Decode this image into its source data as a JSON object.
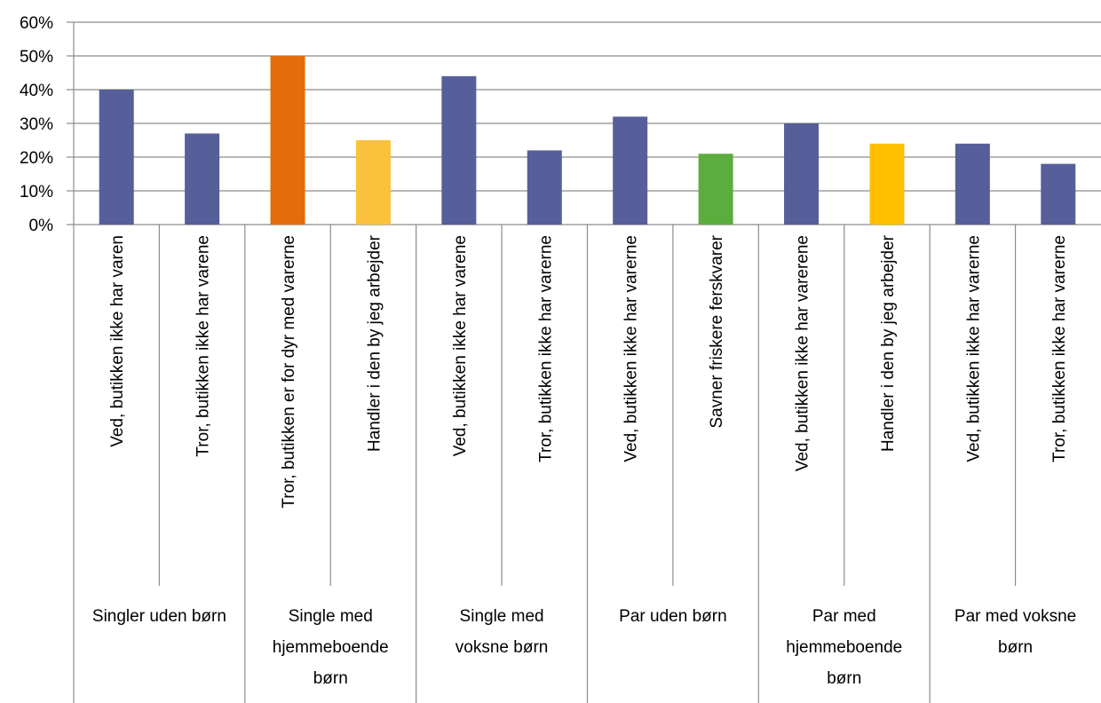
{
  "chart_data": {
    "type": "bar",
    "title": "",
    "xlabel": "",
    "ylabel": "",
    "ylim": [
      0,
      60
    ],
    "yticks": [
      "0%",
      "10%",
      "20%",
      "30%",
      "40%",
      "50%",
      "60%"
    ],
    "grid": true,
    "groups": [
      {
        "label": [
          "Singler uden børn"
        ]
      },
      {
        "label": [
          "Single med",
          "hjemmeboende",
          "børn"
        ]
      },
      {
        "label": [
          "Single med",
          "voksne børn"
        ]
      },
      {
        "label": [
          "Par uden børn"
        ]
      },
      {
        "label": [
          "Par med",
          "hjemmeboende",
          "børn"
        ]
      },
      {
        "label": [
          "Par med voksne",
          "børn"
        ]
      }
    ],
    "categories": [
      "Ved, butikken ikke har varen",
      "Tror, butikken ikke har varene",
      "Tror, butikken er for dyr med varerne",
      "Handler i den by jeg arbejder",
      "Ved, butikken ikke har varene",
      "Tror, butikken ikke har varerne",
      "Ved, butikken ikke har varerne",
      "Savner friskere ferskvarer",
      "Ved, butikken ikke har varerene",
      "Handler i den by jeg arbejder",
      "Ved, butikken ikke har varerne",
      "Tror, butikken ikke har varerne"
    ],
    "values": [
      40,
      27,
      50,
      25,
      44,
      22,
      32,
      21,
      30,
      24,
      24,
      18
    ],
    "colors": [
      "#565F99",
      "#565F99",
      "#E46C0A",
      "#FAC13C",
      "#565F99",
      "#565F99",
      "#565F99",
      "#5BAD3E",
      "#565F99",
      "#FFC000",
      "#565F99",
      "#565F99"
    ]
  }
}
